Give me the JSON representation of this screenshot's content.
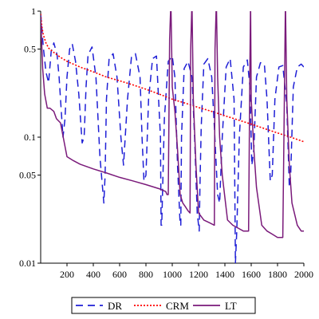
{
  "chart_data": {
    "type": "line",
    "title": "",
    "xlabel": "",
    "ylabel": "",
    "x_scale": "linear",
    "y_scale": "log",
    "xlim": [
      0,
      2000
    ],
    "ylim": [
      0.01,
      1
    ],
    "x_ticks": [
      200,
      400,
      600,
      800,
      1000,
      1200,
      1400,
      1600,
      1800,
      2000
    ],
    "x_tick_labels": [
      "200",
      "400",
      "600",
      "800",
      "1000",
      "1200",
      "1400",
      "1600",
      "1800",
      "2000"
    ],
    "y_ticks": [
      0.01,
      0.05,
      0.1,
      0.5,
      1
    ],
    "y_tick_labels": [
      "0.01",
      "0.05",
      "0.1",
      "0.5",
      "1"
    ],
    "grid": false,
    "legend_position": "bottom",
    "series": [
      {
        "name": "DR",
        "color": "#1f1fd6",
        "dash": "dashed",
        "x": [
          0,
          20,
          40,
          60,
          80,
          100,
          125,
          140,
          155,
          170,
          185,
          200,
          220,
          240,
          265,
          290,
          315,
          330,
          345,
          360,
          390,
          420,
          450,
          480,
          490,
          500,
          520,
          550,
          580,
          610,
          630,
          660,
          690,
          720,
          755,
          770,
          785,
          800,
          820,
          850,
          880,
          910,
          915,
          920,
          940,
          970,
          1000,
          1020,
          1040,
          1060,
          1065,
          1070,
          1090,
          1120,
          1150,
          1170,
          1190,
          1205,
          1210,
          1220,
          1240,
          1270,
          1300,
          1320,
          1345,
          1360,
          1380,
          1410,
          1440,
          1470,
          1480,
          1490,
          1510,
          1540,
          1570,
          1590,
          1605,
          1620,
          1640,
          1670,
          1700,
          1720,
          1745,
          1760,
          1780,
          1810,
          1840,
          1870,
          1890,
          1900,
          1920,
          1950,
          1980,
          2000
        ],
        "y": [
          0.95,
          0.52,
          0.33,
          0.27,
          0.48,
          0.56,
          0.45,
          0.3,
          0.17,
          0.1,
          0.14,
          0.3,
          0.5,
          0.55,
          0.4,
          0.22,
          0.09,
          0.1,
          0.25,
          0.45,
          0.52,
          0.3,
          0.07,
          0.03,
          0.05,
          0.2,
          0.42,
          0.46,
          0.3,
          0.1,
          0.06,
          0.2,
          0.43,
          0.46,
          0.3,
          0.1,
          0.045,
          0.05,
          0.2,
          0.42,
          0.44,
          0.1,
          0.02,
          0.02,
          0.14,
          0.4,
          0.44,
          0.3,
          0.06,
          0.02,
          0.02,
          0.1,
          0.35,
          0.4,
          0.3,
          0.1,
          0.025,
          0.018,
          0.04,
          0.12,
          0.38,
          0.42,
          0.3,
          0.12,
          0.035,
          0.03,
          0.1,
          0.36,
          0.42,
          0.2,
          0.01,
          0.018,
          0.1,
          0.36,
          0.41,
          0.25,
          0.06,
          0.08,
          0.3,
          0.39,
          0.38,
          0.2,
          0.045,
          0.05,
          0.2,
          0.36,
          0.37,
          0.18,
          0.04,
          0.05,
          0.25,
          0.36,
          0.38,
          0.36
        ]
      },
      {
        "name": "CRM",
        "color": "#ff0000",
        "dash": "dotted",
        "x": [
          0,
          10,
          20,
          40,
          60,
          100,
          150,
          200,
          300,
          400,
          500,
          600,
          700,
          800,
          900,
          1000,
          1100,
          1200,
          1300,
          1400,
          1500,
          1600,
          1700,
          1800,
          1900,
          2000
        ],
        "y": [
          0.95,
          0.75,
          0.65,
          0.56,
          0.51,
          0.47,
          0.43,
          0.4,
          0.36,
          0.33,
          0.3,
          0.28,
          0.26,
          0.24,
          0.22,
          0.2,
          0.186,
          0.172,
          0.16,
          0.148,
          0.137,
          0.127,
          0.117,
          0.108,
          0.1,
          0.092
        ]
      },
      {
        "name": "LT",
        "color": "#7a1a7a",
        "dash": "solid",
        "x": [
          0,
          15,
          30,
          50,
          70,
          100,
          120,
          150,
          200,
          250,
          300,
          400,
          500,
          600,
          700,
          800,
          900,
          950,
          960,
          970,
          980,
          990,
          1000,
          1020,
          1040,
          1060,
          1080,
          1100,
          1120,
          1135,
          1140,
          1150,
          1160,
          1180,
          1200,
          1240,
          1280,
          1320,
          1325,
          1335,
          1345,
          1360,
          1380,
          1420,
          1460,
          1500,
          1540,
          1580,
          1590,
          1595,
          1600,
          1620,
          1640,
          1680,
          1720,
          1760,
          1800,
          1840,
          1855,
          1860,
          1870,
          1890,
          1910,
          1950,
          1980,
          2000
        ],
        "y": [
          0.9,
          0.35,
          0.22,
          0.17,
          0.17,
          0.16,
          0.14,
          0.13,
          0.07,
          0.065,
          0.061,
          0.056,
          0.052,
          0.048,
          0.045,
          0.042,
          0.039,
          0.037,
          0.035,
          0.035,
          0.6,
          1.2,
          0.25,
          0.16,
          0.08,
          0.035,
          0.03,
          0.028,
          0.026,
          0.025,
          0.5,
          1.2,
          0.2,
          0.06,
          0.025,
          0.022,
          0.021,
          0.02,
          0.5,
          1.2,
          0.3,
          0.1,
          0.05,
          0.022,
          0.02,
          0.019,
          0.018,
          0.018,
          0.4,
          1.2,
          0.2,
          0.08,
          0.04,
          0.02,
          0.018,
          0.017,
          0.016,
          0.016,
          0.4,
          1.2,
          0.2,
          0.06,
          0.03,
          0.02,
          0.018,
          0.018
        ]
      }
    ]
  }
}
